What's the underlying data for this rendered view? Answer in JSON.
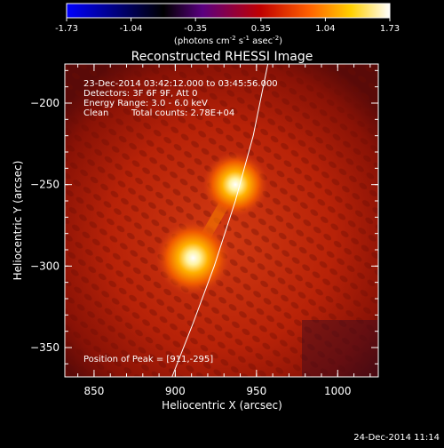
{
  "colorbar": {
    "ticks": [
      "-1.73",
      "-1.04",
      "-0.35",
      "0.35",
      "1.04",
      "1.73"
    ],
    "tick_values": [
      -1.73,
      -1.04,
      -0.35,
      0.35,
      1.04,
      1.73
    ],
    "units_prefix": "(photons cm",
    "units_exp1": "-2",
    "units_mid": " s",
    "units_exp2": "-1",
    "units_mid2": " asec",
    "units_exp3": "-2",
    "units_suffix": ")",
    "colors": [
      "#0000ff",
      "#000000",
      "#5a0080",
      "#c00000",
      "#ff6000",
      "#ffd000",
      "#ffffff"
    ]
  },
  "chart_data": {
    "type": "heatmap",
    "title": "Reconstructed RHESSI Image",
    "xlabel": "Heliocentric X (arcsec)",
    "ylabel": "Heliocentric Y (arcsec)",
    "xlim": [
      832,
      1025
    ],
    "ylim": [
      -368,
      -176
    ],
    "x_ticks": [
      850,
      900,
      950,
      1000
    ],
    "y_ticks": [
      -200,
      -250,
      -300,
      -350
    ],
    "x_tick_labels": [
      "850",
      "900",
      "950",
      "1000"
    ],
    "y_tick_labels": [
      "−200",
      "−250",
      "−300",
      "−350"
    ],
    "sources": [
      {
        "x": 911,
        "y": -295,
        "strength": 1.0
      },
      {
        "x": 937,
        "y": -250,
        "strength": 0.85
      }
    ],
    "limb_curve": [
      [
        957,
        -176
      ],
      [
        948,
        -220
      ],
      [
        937,
        -260
      ],
      [
        924,
        -300
      ],
      [
        911,
        -335
      ],
      [
        898,
        -368
      ]
    ],
    "annotations": [
      "23-Dec-2014 03:42:12.000 to 03:45:56.000",
      "Detectors: 3F 6F 9F, Att 0",
      "Energy Range: 3.0 - 6.0 keV",
      "Clean",
      "Total counts: 2.78E+04"
    ],
    "peak_text": "Position of Peak = [911,-295]"
  },
  "footer": {
    "timestamp": "24-Dec-2014 11:14"
  }
}
